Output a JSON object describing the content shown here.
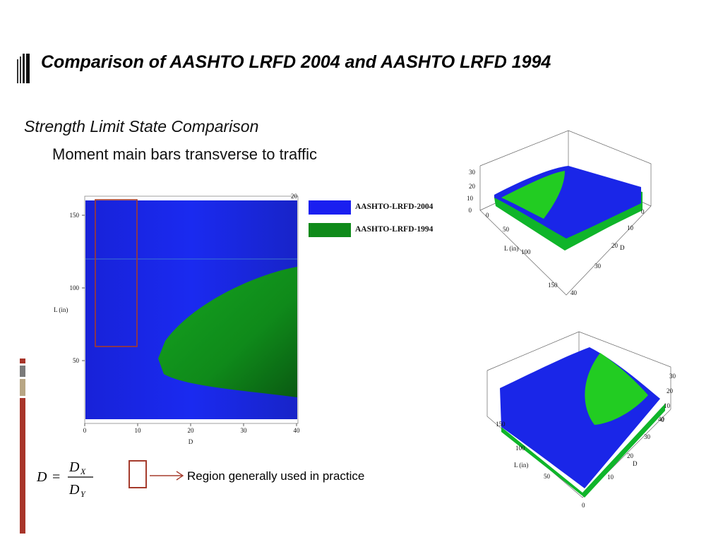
{
  "slide": {
    "title": "Comparison of AASHTO LRFD 2004 and AASHTO LRFD 1994",
    "subtitle": "Strength Limit State Comparison",
    "subsubtitle": "Moment main bars transverse to traffic"
  },
  "legend": {
    "items": [
      {
        "label": "AASHTO-LRFD-2004",
        "color": "#1a1ff0"
      },
      {
        "label": "AASHTO-LRFD-1994",
        "color": "#0f8a1a"
      }
    ]
  },
  "plot2d": {
    "x_axis_label": "D",
    "y_axis_label": "L (in)",
    "x_ticks": [
      "0",
      "10",
      "20",
      "30",
      "40"
    ],
    "y_ticks": [
      "50",
      "100",
      "150"
    ],
    "corner_label": "20",
    "region_practice": {
      "x_range": [
        2,
        10
      ],
      "y_range": [
        60,
        160
      ]
    },
    "colors": {
      "blue": "#1a1ff0",
      "green": "#0f8a1a",
      "region": "#a53b2c"
    }
  },
  "formula": {
    "lhs": "D",
    "eq": "=",
    "num": "D",
    "num_sub": "X",
    "den": "D",
    "den_sub": "Y"
  },
  "region_note": "Region generally used in practice",
  "surface1": {
    "z_ticks": [
      "30",
      "20",
      "10",
      "0"
    ],
    "l_ticks": [
      "0",
      "50",
      "100",
      "150"
    ],
    "d_ticks": [
      "0",
      "10",
      "20",
      "30",
      "40"
    ],
    "l_label": "L (in)",
    "d_label": "D"
  },
  "surface2": {
    "z_ticks": [
      "30",
      "20",
      "10",
      "0"
    ],
    "l_ticks": [
      "150",
      "100",
      "50",
      "0"
    ],
    "d_ticks": [
      "40",
      "30",
      "20",
      "10"
    ],
    "l_label": "L (in)",
    "d_label": "D"
  }
}
